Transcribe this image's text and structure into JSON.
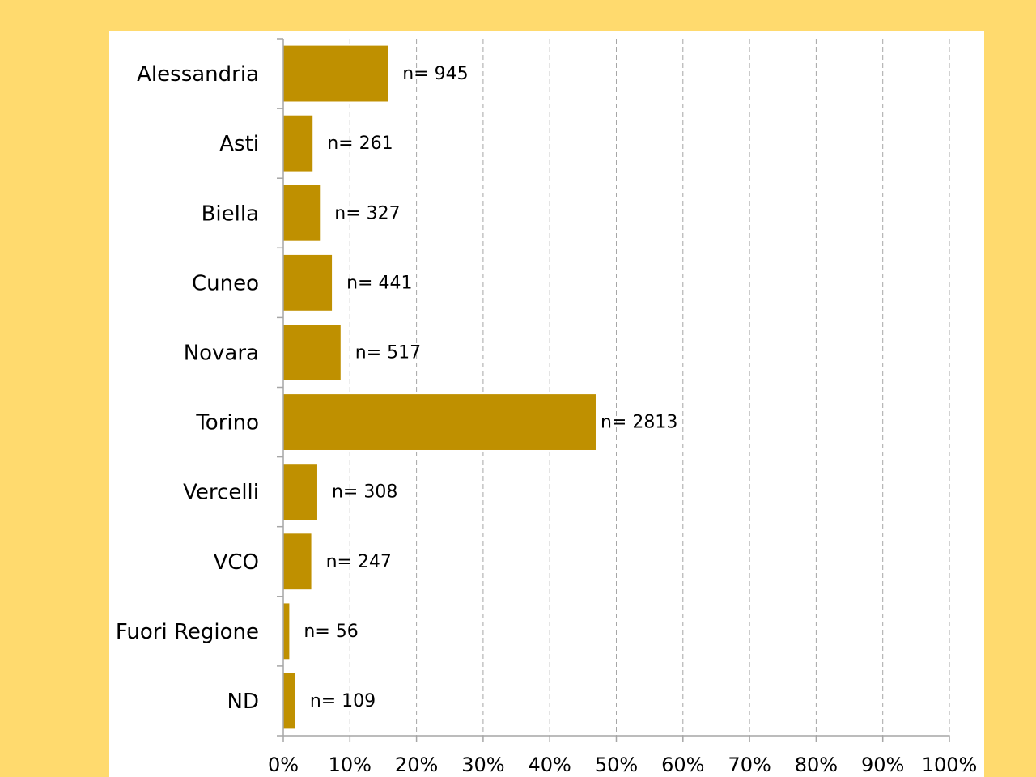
{
  "colors": {
    "background": "#FFDA6E",
    "panel": "#FFFFFF",
    "bar": "#BF9000",
    "axis": "#A6A6A6",
    "grid": "#A6A6A6",
    "text": "#000000"
  },
  "chart_data": {
    "type": "bar",
    "orientation": "horizontal",
    "categories": [
      "Alessandria",
      "Asti",
      "Biella",
      "Cuneo",
      "Novara",
      "Torino",
      "Vercelli",
      "VCO",
      "Fuori Regione",
      "ND"
    ],
    "values": [
      15.7,
      4.4,
      5.5,
      7.3,
      8.6,
      46.9,
      5.1,
      4.2,
      0.9,
      1.8
    ],
    "data_labels": [
      "n= 945",
      "n= 261",
      "n= 327",
      "n= 441",
      "n= 517",
      "n= 2813",
      "n= 308",
      "n= 247",
      "n= 56",
      "n= 109"
    ],
    "xticks": [
      "0%",
      "10%",
      "20%",
      "30%",
      "40%",
      "50%",
      "60%",
      "70%",
      "80%",
      "90%",
      "100%"
    ],
    "xlim": [
      0,
      100
    ],
    "grid": "vertical dashed"
  }
}
